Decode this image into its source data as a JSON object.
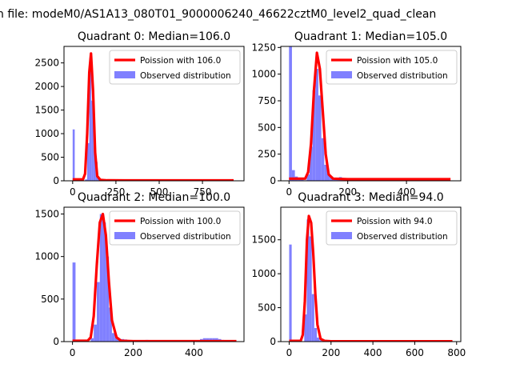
{
  "suptitle": "n file: modeM0/AS1A13_080T01_9000006240_46622cztM0_level2_quad_clean",
  "colors": {
    "fit": "#ff0000",
    "observed": "#8080ff",
    "axes": "#000000"
  },
  "chart_data": [
    {
      "type": "bar",
      "title": "Quadrant 0: Median=106.0",
      "xlim": [
        -50,
        990
      ],
      "ylim": [
        0,
        2850
      ],
      "xticks": [
        0,
        250,
        500,
        750
      ],
      "yticks": [
        0,
        500,
        1000,
        1500,
        2000,
        2500
      ],
      "legend": {
        "placement": "top-right",
        "fit_label": "Poission with 106.0",
        "observed_label": "Observed distribution"
      },
      "bins": {
        "start": 0,
        "width": 12,
        "counts": [
          1090,
          30,
          0,
          0,
          0,
          0,
          30,
          800,
          2600,
          1700,
          1000,
          400,
          80,
          30,
          20,
          10,
          10,
          10,
          5,
          5,
          0,
          0,
          0,
          0,
          0,
          0,
          0,
          0,
          0,
          0,
          0,
          0,
          0,
          0,
          0,
          0,
          0,
          0,
          0,
          0,
          0,
          0,
          0,
          0,
          0,
          0,
          0,
          0,
          0,
          0,
          0,
          0,
          0,
          0,
          0,
          0,
          0,
          0,
          0,
          0,
          0,
          0,
          0,
          0,
          0,
          0,
          0,
          0,
          0,
          0,
          0,
          0,
          0,
          0,
          0,
          0,
          0,
          0,
          0,
          0,
          0,
          0
        ]
      },
      "fit": {
        "x": [
          0,
          60,
          72,
          84,
          96,
          106,
          118,
          130,
          142,
          160,
          200,
          300,
          400,
          500,
          600,
          700,
          800,
          900,
          930
        ],
        "y": [
          30,
          30,
          150,
          1000,
          2300,
          2700,
          1900,
          600,
          100,
          20,
          10,
          8,
          8,
          8,
          8,
          8,
          8,
          8,
          8
        ]
      }
    },
    {
      "type": "bar",
      "title": "Quadrant 1: Median=105.0",
      "xlim": [
        -28,
        585
      ],
      "ylim": [
        0,
        1260
      ],
      "xticks": [
        0,
        200,
        400
      ],
      "yticks": [
        0,
        250,
        500,
        750,
        1000,
        1250
      ],
      "legend": {
        "placement": "top-right",
        "fit_label": "Poission with 105.0",
        "observed_label": "Observed distribution"
      },
      "bins": {
        "start": 0,
        "width": 10,
        "counts": [
          1260,
          100,
          40,
          20,
          10,
          5,
          60,
          320,
          850,
          1050,
          800,
          400,
          150,
          60,
          40,
          30,
          30,
          35,
          25,
          25,
          20,
          20,
          25,
          25,
          20,
          20,
          15,
          20,
          20,
          15,
          10,
          10,
          10,
          10,
          10,
          10,
          10,
          10,
          10,
          10,
          5,
          5,
          5,
          5,
          5,
          5,
          5,
          5,
          5,
          5,
          5,
          5,
          5,
          5
        ]
      },
      "fit": {
        "x": [
          0,
          55,
          65,
          75,
          85,
          95,
          105,
          115,
          125,
          135,
          150,
          200,
          300,
          400,
          500,
          550
        ],
        "y": [
          20,
          20,
          80,
          350,
          850,
          1200,
          1050,
          650,
          250,
          60,
          20,
          15,
          15,
          15,
          15,
          15
        ]
      }
    },
    {
      "type": "bar",
      "title": "Quadrant 2: Median=100.0",
      "xlim": [
        -28,
        565
      ],
      "ylim": [
        0,
        1580
      ],
      "xticks": [
        0,
        200,
        400
      ],
      "yticks": [
        0,
        500,
        1000,
        1500
      ],
      "legend": {
        "placement": "top-right",
        "fit_label": "Poission with 100.0",
        "observed_label": "Observed distribution"
      },
      "bins": {
        "start": 0,
        "width": 10,
        "counts": [
          930,
          0,
          0,
          0,
          0,
          0,
          40,
          200,
          700,
          1500,
          1400,
          1000,
          400,
          100,
          50,
          20,
          30,
          25,
          10,
          10,
          10,
          10,
          10,
          10,
          20,
          10,
          10,
          10,
          10,
          10,
          10,
          10,
          10,
          10,
          10,
          10,
          10,
          10,
          10,
          10,
          10,
          10,
          30,
          40,
          40,
          40,
          40,
          40,
          30,
          20,
          10,
          5,
          5,
          5
        ]
      },
      "fit": {
        "x": [
          0,
          50,
          60,
          70,
          80,
          90,
          100,
          110,
          120,
          130,
          145,
          160,
          200,
          300,
          400,
          500,
          540
        ],
        "y": [
          10,
          10,
          50,
          300,
          900,
          1400,
          1500,
          1250,
          700,
          250,
          50,
          10,
          5,
          5,
          5,
          5,
          5
        ]
      }
    },
    {
      "type": "bar",
      "title": "Quadrant 3: Median=94.0",
      "xlim": [
        -40,
        820
      ],
      "ylim": [
        0,
        1980
      ],
      "xticks": [
        0,
        200,
        400,
        600,
        800
      ],
      "yticks": [
        0,
        500,
        1000,
        1500
      ],
      "legend": {
        "placement": "top-right",
        "fit_label": "Poission with 94.0",
        "observed_label": "Observed distribution"
      },
      "bins": {
        "start": 0,
        "width": 12,
        "counts": [
          1430,
          0,
          0,
          0,
          0,
          0,
          400,
          1800,
          1550,
          700,
          200,
          60,
          20,
          10,
          5,
          5,
          5,
          5,
          5,
          5,
          5,
          5,
          5,
          5,
          5,
          5,
          5,
          5,
          5,
          5,
          5,
          5,
          5,
          5,
          5,
          5,
          5,
          5,
          5,
          5,
          5,
          5,
          5,
          5,
          5,
          5,
          5,
          5,
          5,
          5,
          5,
          5,
          5,
          5,
          5,
          5,
          5,
          5,
          5,
          5,
          5,
          5,
          5,
          5,
          5
        ]
      },
      "fit": {
        "x": [
          0,
          55,
          65,
          75,
          85,
          94,
          105,
          115,
          125,
          135,
          150,
          170,
          200,
          300,
          400,
          500,
          600,
          700,
          780
        ],
        "y": [
          10,
          10,
          100,
          600,
          1500,
          1850,
          1750,
          1300,
          700,
          250,
          40,
          10,
          5,
          5,
          5,
          5,
          5,
          5,
          5
        ]
      }
    }
  ]
}
